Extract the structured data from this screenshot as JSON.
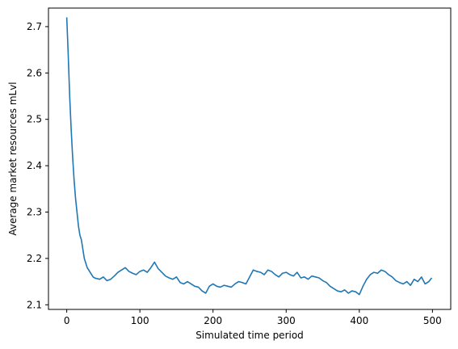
{
  "chart_data": {
    "type": "line",
    "title": "",
    "xlabel": "Simulated time period",
    "ylabel": "Average market resources mLvl",
    "xlim": [
      -25,
      525
    ],
    "ylim": [
      2.09,
      2.74
    ],
    "xticks": [
      0,
      100,
      200,
      300,
      400,
      500
    ],
    "xtick_labels": [
      "0",
      "100",
      "200",
      "300",
      "400",
      "500"
    ],
    "yticks": [
      2.1,
      2.2,
      2.3,
      2.4,
      2.5,
      2.6,
      2.7
    ],
    "ytick_labels": [
      "2.1",
      "2.2",
      "2.3",
      "2.4",
      "2.5",
      "2.6",
      "2.7"
    ],
    "grid": false,
    "legend": "none",
    "series": [
      {
        "color": "#1f77b4",
        "x": [
          0,
          2,
          4,
          6,
          8,
          10,
          12,
          14,
          16,
          18,
          20,
          22,
          24,
          26,
          28,
          30,
          32,
          34,
          36,
          38,
          40,
          45,
          50,
          55,
          60,
          65,
          70,
          75,
          80,
          85,
          90,
          95,
          100,
          105,
          110,
          115,
          120,
          125,
          130,
          135,
          140,
          145,
          150,
          155,
          160,
          165,
          170,
          175,
          180,
          185,
          190,
          195,
          200,
          205,
          210,
          215,
          220,
          225,
          230,
          235,
          240,
          245,
          250,
          255,
          260,
          265,
          270,
          275,
          280,
          285,
          290,
          295,
          300,
          305,
          310,
          315,
          320,
          325,
          330,
          335,
          340,
          345,
          350,
          355,
          360,
          365,
          370,
          375,
          380,
          385,
          390,
          395,
          400,
          405,
          410,
          415,
          420,
          425,
          430,
          435,
          440,
          445,
          450,
          455,
          460,
          465,
          470,
          475,
          480,
          485,
          490,
          495,
          499
        ],
        "y": [
          2.72,
          2.64,
          2.55,
          2.48,
          2.42,
          2.37,
          2.33,
          2.3,
          2.27,
          2.25,
          2.24,
          2.22,
          2.2,
          2.19,
          2.18,
          2.175,
          2.17,
          2.165,
          2.16,
          2.158,
          2.157,
          2.155,
          2.16,
          2.152,
          2.155,
          2.162,
          2.17,
          2.175,
          2.18,
          2.172,
          2.168,
          2.165,
          2.172,
          2.175,
          2.17,
          2.18,
          2.192,
          2.178,
          2.17,
          2.162,
          2.158,
          2.155,
          2.16,
          2.148,
          2.145,
          2.15,
          2.145,
          2.14,
          2.138,
          2.13,
          2.125,
          2.14,
          2.145,
          2.14,
          2.138,
          2.142,
          2.14,
          2.138,
          2.145,
          2.15,
          2.148,
          2.145,
          2.16,
          2.175,
          2.172,
          2.17,
          2.165,
          2.175,
          2.172,
          2.165,
          2.16,
          2.168,
          2.17,
          2.165,
          2.162,
          2.17,
          2.158,
          2.16,
          2.155,
          2.162,
          2.16,
          2.158,
          2.152,
          2.148,
          2.14,
          2.135,
          2.13,
          2.128,
          2.132,
          2.125,
          2.13,
          2.128,
          2.122,
          2.14,
          2.155,
          2.165,
          2.17,
          2.168,
          2.175,
          2.172,
          2.165,
          2.16,
          2.152,
          2.148,
          2.145,
          2.15,
          2.142,
          2.155,
          2.15,
          2.16,
          2.145,
          2.15,
          2.158
        ]
      }
    ]
  }
}
